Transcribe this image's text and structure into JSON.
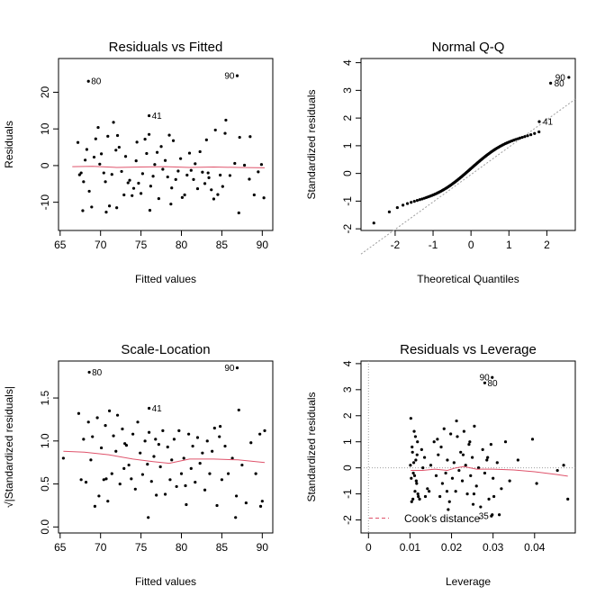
{
  "colors": {
    "points": "#000000",
    "smooth": "#df536b",
    "reference": "#9e9e9e"
  },
  "chart_data": [
    {
      "type": "scatter",
      "title": "Residuals vs Fitted",
      "xlabel": "Fitted values",
      "ylabel": "Residuals",
      "xlim": [
        64.8,
        91.3
      ],
      "ylim": [
        -17.7,
        29.2
      ],
      "xticks": [
        65,
        70,
        75,
        80,
        85,
        90
      ],
      "yticks": [
        -10,
        0,
        10,
        20
      ],
      "points": [
        [
          67.2,
          6.3
        ],
        [
          67.4,
          -2.5
        ],
        [
          67.6,
          -2.0
        ],
        [
          67.9,
          -4.4
        ],
        [
          68.1,
          1.5
        ],
        [
          68.3,
          4.4
        ],
        [
          68.6,
          -7.0
        ],
        [
          68.9,
          -11.3
        ],
        [
          69.2,
          2.3
        ],
        [
          69.4,
          7.3
        ],
        [
          69.7,
          10.4
        ],
        [
          69.9,
          0.4
        ],
        [
          70.1,
          3.2
        ],
        [
          70.4,
          -2.0
        ],
        [
          70.6,
          -4.4
        ],
        [
          70.9,
          8.0
        ],
        [
          71.1,
          -11.0
        ],
        [
          71.4,
          -2.4
        ],
        [
          71.6,
          11.8
        ],
        [
          71.9,
          4.2
        ],
        [
          72.1,
          8.2
        ],
        [
          72.3,
          5.0
        ],
        [
          72.6,
          -1.6
        ],
        [
          72.9,
          -8.0
        ],
        [
          73.1,
          2.5
        ],
        [
          73.4,
          -4.7
        ],
        [
          73.6,
          -4.0
        ],
        [
          73.9,
          -8.2
        ],
        [
          74.1,
          -6.2
        ],
        [
          74.4,
          1.3
        ],
        [
          74.7,
          -4.8
        ],
        [
          75.0,
          -7.6
        ],
        [
          75.2,
          -2.2
        ],
        [
          75.5,
          7.2
        ],
        [
          75.7,
          3.3
        ],
        [
          76.0,
          8.5
        ],
        [
          76.2,
          -5.6
        ],
        [
          76.5,
          -2.9
        ],
        [
          76.7,
          0.3
        ],
        [
          77.0,
          3.6
        ],
        [
          77.2,
          -9.0
        ],
        [
          77.5,
          5.2
        ],
        [
          77.7,
          -1.0
        ],
        [
          78.0,
          1.4
        ],
        [
          78.3,
          -3.1
        ],
        [
          78.5,
          8.3
        ],
        [
          78.8,
          -6.1
        ],
        [
          79.0,
          6.8
        ],
        [
          79.3,
          -3.8
        ],
        [
          79.6,
          -1.5
        ],
        [
          79.9,
          1.9
        ],
        [
          80.1,
          -8.7
        ],
        [
          80.4,
          -8.0
        ],
        [
          80.7,
          -2.6
        ],
        [
          81.0,
          3.4
        ],
        [
          81.2,
          -1.3
        ],
        [
          81.5,
          -3.8
        ],
        [
          81.7,
          0.5
        ],
        [
          82.0,
          -6.3
        ],
        [
          82.3,
          3.8
        ],
        [
          82.6,
          -1.8
        ],
        [
          82.9,
          -4.9
        ],
        [
          83.1,
          7.0
        ],
        [
          83.4,
          -3.3
        ],
        [
          83.7,
          -6.6
        ],
        [
          84.0,
          -9.1
        ],
        [
          84.2,
          9.7
        ],
        [
          84.5,
          -7.9
        ],
        [
          84.8,
          -2.6
        ],
        [
          85.1,
          -5.7
        ],
        [
          85.4,
          8.8
        ],
        [
          86.0,
          -2.7
        ],
        [
          86.6,
          0.6
        ],
        [
          87.2,
          7.7
        ],
        [
          87.8,
          0.1
        ],
        [
          88.4,
          -3.7
        ],
        [
          89.0,
          -8.0
        ],
        [
          89.5,
          -1.7
        ],
        [
          89.9,
          0.3
        ],
        [
          90.2,
          -8.8
        ],
        [
          67.8,
          -12.3
        ],
        [
          70.7,
          -12.7
        ],
        [
          74.5,
          6.4
        ],
        [
          76.1,
          -12.2
        ],
        [
          85.5,
          12.4
        ],
        [
          87.1,
          -12.9
        ],
        [
          72.0,
          -11.5
        ],
        [
          78.7,
          -10.5
        ],
        [
          88.5,
          7.9
        ],
        [
          83.3,
          -2.0
        ],
        [
          68.5,
          23.0
        ],
        [
          86.9,
          24.5
        ],
        [
          76.0,
          13.6
        ]
      ],
      "smooth": [
        [
          66.5,
          -0.3
        ],
        [
          69,
          -0.2
        ],
        [
          72,
          -0.5
        ],
        [
          75,
          -0.4
        ],
        [
          78,
          -0.3
        ],
        [
          81,
          -0.5
        ],
        [
          84,
          -0.4
        ],
        [
          87,
          -0.5
        ],
        [
          90.3,
          -0.6
        ]
      ],
      "labels": [
        {
          "i": 90,
          "text": "80",
          "side": "right"
        },
        {
          "i": 91,
          "text": "90",
          "side": "left"
        },
        {
          "i": 92,
          "text": "41",
          "side": "right"
        }
      ]
    },
    {
      "type": "scatter",
      "title": "Normal Q-Q",
      "xlabel": "Theoretical Quantiles",
      "ylabel": "Standardized residuals",
      "xlim": [
        -2.9,
        2.75
      ],
      "ylim": [
        -2.06,
        4.15
      ],
      "xticks": [
        -2,
        -1,
        0,
        1,
        2
      ],
      "yticks": [
        -2,
        -1,
        0,
        1,
        2,
        3,
        4
      ],
      "reference_line": {
        "slope": 0.99,
        "intercept": -0.04
      },
      "qq": {
        "n": 93,
        "yrange": [
          -1.85,
          1.9
        ]
      },
      "extra_points": [
        {
          "x": 2.1,
          "y": 3.26,
          "label": "80"
        },
        {
          "x": 2.58,
          "y": 3.47,
          "label": "90"
        },
        {
          "x": 1.8,
          "y": 1.87,
          "label": "41"
        }
      ]
    },
    {
      "type": "scatter",
      "title": "Scale-Location",
      "xlabel": "Fitted values",
      "ylabel": "√|Standardized residuals|",
      "xlim": [
        64.8,
        91.3
      ],
      "ylim": [
        -0.07,
        1.93
      ],
      "xticks": [
        65,
        70,
        75,
        80,
        85,
        90
      ],
      "yticks": [
        0.0,
        0.5,
        1.0,
        1.5
      ],
      "points": [
        [
          65.4,
          0.8
        ],
        [
          67.3,
          1.32
        ],
        [
          67.6,
          0.55
        ],
        [
          67.9,
          1.02
        ],
        [
          68.2,
          0.52
        ],
        [
          68.5,
          1.22
        ],
        [
          68.8,
          0.78
        ],
        [
          69.0,
          1.05
        ],
        [
          69.3,
          0.24
        ],
        [
          69.6,
          1.27
        ],
        [
          69.8,
          0.36
        ],
        [
          70.1,
          0.92
        ],
        [
          70.4,
          0.55
        ],
        [
          70.6,
          1.18
        ],
        [
          70.9,
          0.3
        ],
        [
          71.1,
          1.35
        ],
        [
          71.4,
          0.62
        ],
        [
          71.6,
          1.06
        ],
        [
          71.9,
          0.88
        ],
        [
          72.1,
          1.3
        ],
        [
          72.4,
          0.5
        ],
        [
          72.7,
          1.14
        ],
        [
          72.9,
          0.68
        ],
        [
          73.2,
          0.95
        ],
        [
          73.5,
          0.72
        ],
        [
          73.8,
          0.56
        ],
        [
          74.0,
          1.08
        ],
        [
          74.3,
          0.44
        ],
        [
          74.6,
          1.22
        ],
        [
          74.9,
          0.86
        ],
        [
          75.2,
          0.61
        ],
        [
          75.5,
          1.0
        ],
        [
          75.8,
          0.73
        ],
        [
          76.0,
          1.1
        ],
        [
          76.3,
          0.53
        ],
        [
          76.6,
          0.82
        ],
        [
          76.9,
          0.37
        ],
        [
          77.2,
          0.96
        ],
        [
          77.4,
          0.7
        ],
        [
          77.7,
          1.12
        ],
        [
          78.0,
          0.38
        ],
        [
          78.3,
          0.93
        ],
        [
          78.6,
          0.55
        ],
        [
          78.8,
          0.78
        ],
        [
          79.1,
          1.02
        ],
        [
          79.4,
          0.47
        ],
        [
          79.7,
          1.12
        ],
        [
          80.0,
          0.62
        ],
        [
          80.3,
          0.8
        ],
        [
          80.6,
          0.26
        ],
        [
          80.9,
          1.08
        ],
        [
          81.2,
          0.68
        ],
        [
          81.4,
          0.94
        ],
        [
          81.7,
          0.52
        ],
        [
          82.0,
          1.04
        ],
        [
          82.3,
          0.74
        ],
        [
          82.6,
          0.86
        ],
        [
          82.9,
          0.43
        ],
        [
          83.2,
          1.0
        ],
        [
          83.5,
          0.62
        ],
        [
          83.8,
          0.88
        ],
        [
          84.1,
          1.15
        ],
        [
          84.4,
          0.25
        ],
        [
          84.7,
          1.05
        ],
        [
          85.0,
          0.55
        ],
        [
          85.4,
          0.94
        ],
        [
          85.8,
          0.62
        ],
        [
          86.3,
          0.8
        ],
        [
          86.7,
          0.11
        ],
        [
          87.1,
          1.36
        ],
        [
          87.5,
          0.72
        ],
        [
          88.0,
          0.28
        ],
        [
          88.6,
          0.98
        ],
        [
          89.2,
          0.62
        ],
        [
          89.7,
          1.08
        ],
        [
          90.0,
          0.3
        ],
        [
          90.3,
          1.12
        ],
        [
          75.9,
          0.11
        ],
        [
          73.0,
          0.97
        ],
        [
          80.5,
          0.48
        ],
        [
          84.8,
          1.17
        ],
        [
          70.7,
          0.56
        ],
        [
          76.8,
          1.02
        ],
        [
          89.8,
          0.24
        ],
        [
          86.8,
          0.36
        ],
        [
          68.6,
          1.8
        ],
        [
          86.9,
          1.85
        ],
        [
          76.0,
          1.38
        ]
      ],
      "smooth": [
        [
          65.4,
          0.88
        ],
        [
          68,
          0.87
        ],
        [
          71,
          0.84
        ],
        [
          74,
          0.79
        ],
        [
          76.5,
          0.76
        ],
        [
          78.5,
          0.74
        ],
        [
          81,
          0.79
        ],
        [
          84,
          0.79
        ],
        [
          87,
          0.78
        ],
        [
          90.3,
          0.75
        ]
      ],
      "labels": [
        {
          "i": 85,
          "text": "80",
          "side": "right"
        },
        {
          "i": 86,
          "text": "90",
          "side": "left"
        },
        {
          "i": 87,
          "text": "41",
          "side": "right"
        }
      ]
    },
    {
      "type": "scatter",
      "title": "Residuals vs Leverage",
      "xlabel": "Leverage",
      "ylabel": "Standardized residuals",
      "xlim": [
        -0.0018,
        0.0498
      ],
      "ylim": [
        -2.5,
        4.1
      ],
      "xticks": [
        0.0,
        0.01,
        0.02,
        0.03,
        0.04
      ],
      "yticks": [
        -2,
        -1,
        0,
        1,
        2,
        3,
        4
      ],
      "points": [
        [
          0.0102,
          1.9
        ],
        [
          0.0104,
          -1.3
        ],
        [
          0.0106,
          0.6
        ],
        [
          0.0108,
          -0.2
        ],
        [
          0.011,
          1.4
        ],
        [
          0.0112,
          -0.9
        ],
        [
          0.0114,
          0.3
        ],
        [
          0.0116,
          -0.6
        ],
        [
          0.0118,
          1.0
        ],
        [
          0.012,
          -1.1
        ],
        [
          0.0101,
          0.1
        ],
        [
          0.0103,
          -0.4
        ],
        [
          0.0105,
          0.8
        ],
        [
          0.0107,
          -1.2
        ],
        [
          0.0109,
          0.2
        ],
        [
          0.0111,
          -0.3
        ],
        [
          0.0113,
          1.2
        ],
        [
          0.0115,
          -0.5
        ],
        [
          0.0117,
          0.5
        ],
        [
          0.0119,
          -1.0
        ],
        [
          0.0135,
          0.4
        ],
        [
          0.0142,
          -0.8
        ],
        [
          0.015,
          0.1
        ],
        [
          0.0158,
          1.0
        ],
        [
          0.0163,
          -0.3
        ],
        [
          0.0168,
          0.5
        ],
        [
          0.0172,
          -1.1
        ],
        [
          0.0175,
          0.8
        ],
        [
          0.0178,
          -0.6
        ],
        [
          0.0182,
          1.5
        ],
        [
          0.0186,
          -0.2
        ],
        [
          0.019,
          0.3
        ],
        [
          0.0195,
          -1.3
        ],
        [
          0.0198,
          1.3
        ],
        [
          0.0202,
          -0.4
        ],
        [
          0.0206,
          0.2
        ],
        [
          0.021,
          -0.9
        ],
        [
          0.0214,
          1.2
        ],
        [
          0.0218,
          -0.1
        ],
        [
          0.0222,
          0.6
        ],
        [
          0.0226,
          -0.5
        ],
        [
          0.023,
          1.4
        ],
        [
          0.0234,
          0.1
        ],
        [
          0.0238,
          -1.0
        ],
        [
          0.0242,
          0.9
        ],
        [
          0.0246,
          -0.3
        ],
        [
          0.025,
          0.4
        ],
        [
          0.0255,
          1.6
        ],
        [
          0.026,
          -0.7
        ],
        [
          0.0265,
          0.0
        ],
        [
          0.027,
          -1.5
        ],
        [
          0.0275,
          0.7
        ],
        [
          0.028,
          -0.2
        ],
        [
          0.0285,
          0.3
        ],
        [
          0.029,
          -1.2
        ],
        [
          0.0295,
          0.9
        ],
        [
          0.03,
          -0.4
        ],
        [
          0.031,
          0.2
        ],
        [
          0.032,
          -0.8
        ],
        [
          0.033,
          1.0
        ],
        [
          0.034,
          -0.5
        ],
        [
          0.036,
          0.3
        ],
        [
          0.0395,
          1.1
        ],
        [
          0.0405,
          -0.6
        ],
        [
          0.0455,
          -0.1
        ],
        [
          0.047,
          0.1
        ],
        [
          0.048,
          -1.2
        ],
        [
          0.0123,
          -1.2
        ],
        [
          0.0128,
          0.7
        ],
        [
          0.0146,
          -0.9
        ],
        [
          0.0166,
          1.1
        ],
        [
          0.0192,
          -1.6
        ],
        [
          0.0228,
          0.5
        ],
        [
          0.0252,
          -1.4
        ],
        [
          0.0287,
          0.4
        ],
        [
          0.0298,
          -1.8
        ],
        [
          0.0315,
          -1.8
        ],
        [
          0.0131,
          0.0
        ],
        [
          0.0254,
          -1.0
        ],
        [
          0.0212,
          1.8
        ],
        [
          0.0189,
          -0.9
        ],
        [
          0.0137,
          -1.1
        ],
        [
          0.0244,
          1.0
        ],
        [
          0.0302,
          -1.1
        ],
        [
          0.028,
          3.26
        ],
        [
          0.0298,
          3.47
        ],
        [
          0.0296,
          -1.85
        ]
      ],
      "smooth": [
        [
          0.0102,
          -0.1
        ],
        [
          0.013,
          -0.1
        ],
        [
          0.016,
          -0.05
        ],
        [
          0.019,
          -0.1
        ],
        [
          0.021,
          0.0
        ],
        [
          0.023,
          0.05
        ],
        [
          0.026,
          -0.05
        ],
        [
          0.03,
          -0.05
        ],
        [
          0.035,
          -0.08
        ],
        [
          0.04,
          -0.15
        ],
        [
          0.045,
          -0.25
        ],
        [
          0.048,
          -0.32
        ]
      ],
      "labels": [
        {
          "i": 84,
          "text": "80",
          "side": "right"
        },
        {
          "i": 85,
          "text": "90",
          "side": "left"
        },
        {
          "i": 86,
          "text": "35",
          "side": "left"
        }
      ],
      "legend": {
        "text": "Cook's distance",
        "position": "bottom-left"
      },
      "reference_lines": {
        "h": 0,
        "v": 0
      }
    }
  ]
}
